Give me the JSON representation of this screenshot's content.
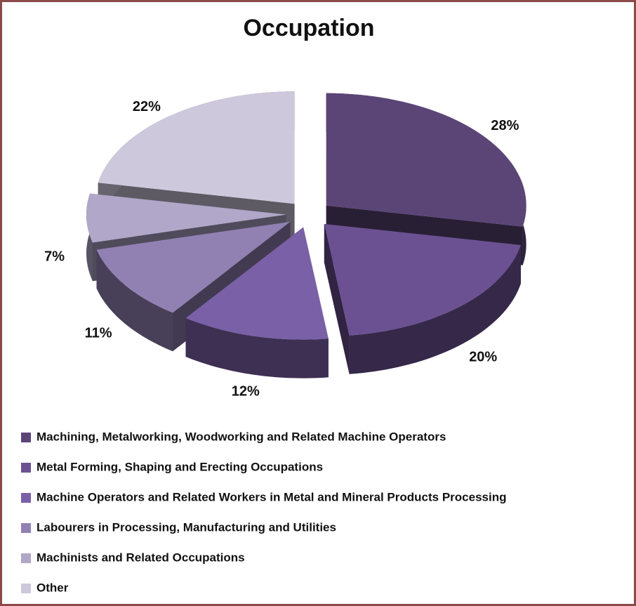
{
  "chart_data": {
    "type": "pie",
    "title": "Occupation",
    "categories": [
      "Machining, Metalworking, Woodworking and Related Machine Operators",
      "Metal Forming, Shaping and Erecting Occupations",
      "Machine Operators and Related Workers in Metal and Mineral Products Processing",
      "Labourers in Processing, Manufacturing and Utilities",
      "Machinists and Related Occupations",
      "Other"
    ],
    "values": [
      28,
      20,
      12,
      11,
      7,
      22
    ],
    "value_labels": [
      "28%",
      "20%",
      "12%",
      "11%",
      "7%",
      "22%"
    ],
    "colors": [
      "#5b4577",
      "#6b5192",
      "#7a60a6",
      "#9181b3",
      "#b1a7c9",
      "#cec8dc"
    ],
    "legend": "bottom",
    "three_d": true,
    "exploded": true
  }
}
